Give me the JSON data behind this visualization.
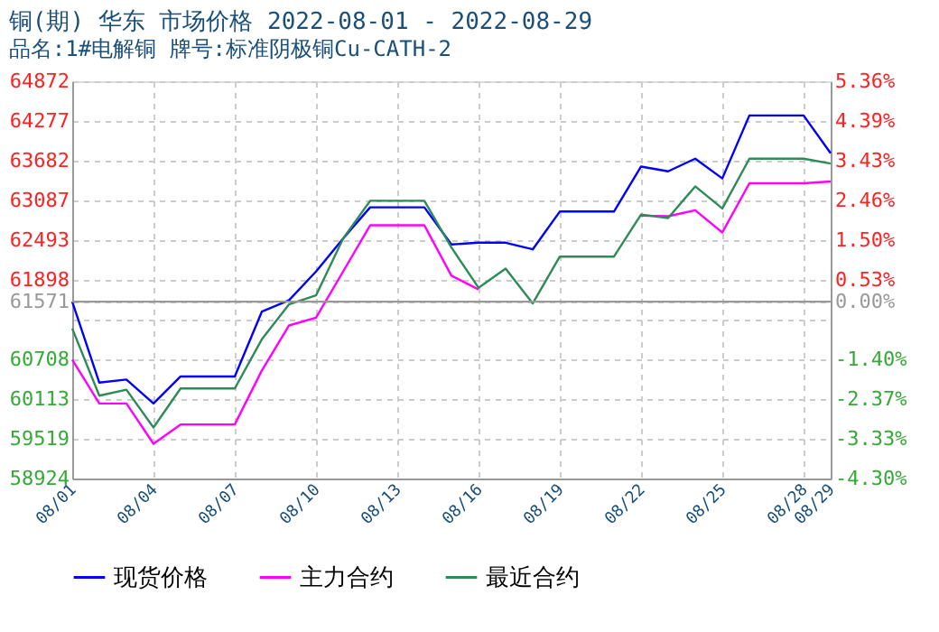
{
  "chart_data": {
    "type": "line",
    "title": "铜(期) 华东 市场价格 2022-08-01 - 2022-08-29",
    "subtitle": "品名:1#电解铜 牌号:标准阴极铜Cu-CATH-2",
    "x": [
      "2022-08-01",
      "2022-08-02",
      "2022-08-03",
      "2022-08-04",
      "2022-08-05",
      "2022-08-06",
      "2022-08-07",
      "2022-08-08",
      "2022-08-09",
      "2022-08-10",
      "2022-08-11",
      "2022-08-12",
      "2022-08-13",
      "2022-08-14",
      "2022-08-15",
      "2022-08-16",
      "2022-08-17",
      "2022-08-18",
      "2022-08-19",
      "2022-08-20",
      "2022-08-21",
      "2022-08-22",
      "2022-08-23",
      "2022-08-24",
      "2022-08-25",
      "2022-08-26",
      "2022-08-27",
      "2022-08-28",
      "2022-08-29"
    ],
    "series": [
      {
        "name": "现货价格",
        "color": "#0000ff",
        "values": [
          61571,
          60360,
          60406,
          60048,
          60452,
          60452,
          60452,
          61422,
          61592,
          62023,
          62517,
          62985,
          62985,
          62985,
          62428,
          62455,
          62455,
          62355,
          62921,
          62921,
          62921,
          63595,
          63524,
          63713,
          63417,
          64360,
          64360,
          64360,
          63794
        ]
      },
      {
        "name": "主力合约",
        "color": "#ff00ff",
        "values": [
          60703,
          60048,
          60048,
          59444,
          59733,
          59733,
          59733,
          60541,
          61215,
          61331,
          62023,
          62716,
          62716,
          62716,
          61961,
          61754,
          null,
          null,
          null,
          null,
          null,
          62859,
          62851,
          62940,
          62608,
          63344,
          63344,
          63344,
          63371
        ]
      },
      {
        "name": "最近合约",
        "color": "#2e8b57",
        "values": [
          61170,
          60164,
          60254,
          59688,
          60273,
          60273,
          60273,
          61008,
          61530,
          61665,
          62517,
          63083,
          63083,
          63083,
          62382,
          61781,
          62068,
          61546,
          62247,
          62247,
          62247,
          62877,
          62824,
          63298,
          62967,
          63713,
          63713,
          63713,
          63640
        ]
      }
    ],
    "xlim": [
      "2022-08-01",
      "2022-08-29"
    ],
    "xticks": [
      {
        "value": "2022-08-01",
        "label": "08/01"
      },
      {
        "value": "2022-08-04",
        "label": "08/04"
      },
      {
        "value": "2022-08-07",
        "label": "08/07"
      },
      {
        "value": "2022-08-10",
        "label": "08/10"
      },
      {
        "value": "2022-08-13",
        "label": "08/13"
      },
      {
        "value": "2022-08-16",
        "label": "08/16"
      },
      {
        "value": "2022-08-19",
        "label": "08/19"
      },
      {
        "value": "2022-08-22",
        "label": "08/22"
      },
      {
        "value": "2022-08-25",
        "label": "08/25"
      },
      {
        "value": "2022-08-28",
        "label": "08/28"
      },
      {
        "value": "2022-08-29",
        "label": "08/29"
      }
    ],
    "ylim": [
      58924,
      64872
    ],
    "yticks": [
      58924,
      59519,
      60113,
      60708,
      {
        "value": 61303,
        "label": null
      },
      61571,
      61898,
      62493,
      63087,
      63682,
      64277,
      64872
    ],
    "y2lim": [
      -4.3,
      5.36
    ],
    "y2ticks": [
      {
        "value": -4.3,
        "label": "-4.30%"
      },
      {
        "value": -3.33,
        "label": "-3.33%"
      },
      {
        "value": -2.37,
        "label": "-2.37%"
      },
      {
        "value": -1.4,
        "label": "-1.40%"
      },
      {
        "value": 0,
        "label": "0.00%"
      },
      {
        "value": 0.53,
        "label": "0.53%"
      },
      {
        "value": 1.5,
        "label": "1.50%"
      },
      {
        "value": 2.46,
        "label": "2.46%"
      },
      {
        "value": 3.43,
        "label": "3.43%"
      },
      {
        "value": 4.39,
        "label": "4.39%"
      },
      {
        "value": 5.36,
        "label": "5.36%"
      }
    ],
    "ref_lines": [
      {
        "axis": "y2",
        "value": 0,
        "color": "#999999"
      }
    ],
    "grid": true,
    "legend": "bottom",
    "marker": "none",
    "line_style": "solid"
  }
}
